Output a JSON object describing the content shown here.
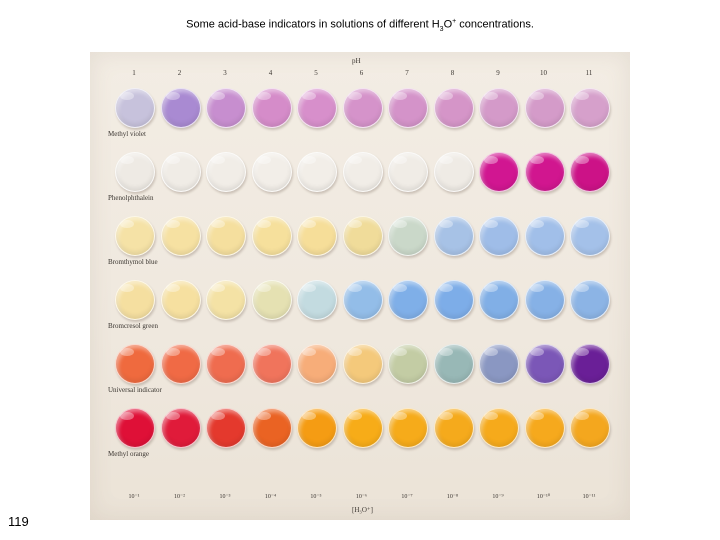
{
  "caption": {
    "part1": "Some acid-base indicators in solutions of different H",
    "sub": "3",
    "part2": "O",
    "sup": "+",
    "part3": " concentrations."
  },
  "slide_number": "119",
  "photo": {
    "ph_title": "pH",
    "ph_values": [
      "1",
      "2",
      "3",
      "4",
      "5",
      "6",
      "7",
      "8",
      "9",
      "10",
      "11"
    ],
    "h3o_labels": [
      "10⁻¹",
      "10⁻²",
      "10⁻³",
      "10⁻⁴",
      "10⁻⁵",
      "10⁻⁶",
      "10⁻⁷",
      "10⁻⁸",
      "10⁻⁹",
      "10⁻¹⁰",
      "10⁻¹¹"
    ],
    "h3o_title": "[H₃O⁺]",
    "indicators": [
      {
        "name": "Methyl violet",
        "colors": [
          "#c7c2dc",
          "#a98ad2",
          "#c78ecf",
          "#d58cc9",
          "#d78fcb",
          "#d593ca",
          "#d493c9",
          "#d595c8",
          "#d49ac9",
          "#d49bc9",
          "#d6a0cb"
        ]
      },
      {
        "name": "Phenolphthalein",
        "colors": [
          "#eeeae4",
          "#f0ece6",
          "#f1ede7",
          "#f2eee8",
          "#f2eee8",
          "#f1ede7",
          "#f0ece6",
          "#efebe5",
          "#d11691",
          "#d1168f",
          "#cc1287"
        ]
      },
      {
        "name": "Bromthymol blue",
        "colors": [
          "#f5e2a6",
          "#f6e1a2",
          "#f5df9e",
          "#f6e09c",
          "#f6de99",
          "#f0dc9a",
          "#cad8c9",
          "#a7c2e6",
          "#9fbde8",
          "#a1bfe9",
          "#a4c1e9"
        ]
      },
      {
        "name": "Bromcresol green",
        "colors": [
          "#f5dfa0",
          "#f6e0a0",
          "#f4e2a5",
          "#e5e1b2",
          "#c3dbe0",
          "#93bde8",
          "#7fafe8",
          "#7dade8",
          "#81afe6",
          "#86b1e6",
          "#8cb4e5"
        ]
      },
      {
        "name": "Universal indicator",
        "colors": [
          "#ef6a3e",
          "#f06a45",
          "#ef6c4f",
          "#f0745c",
          "#f7ad79",
          "#f4c97b",
          "#c3cca4",
          "#98b8b6",
          "#8a97c2",
          "#7b57b7",
          "#6a1f97"
        ]
      },
      {
        "name": "Methyl orange",
        "colors": [
          "#df1037",
          "#e01b3a",
          "#e4392d",
          "#ea6323",
          "#f59c13",
          "#f7ac18",
          "#f6ab1a",
          "#f5aa1c",
          "#f6aa1b",
          "#f6a91d",
          "#f4a71e"
        ]
      }
    ]
  }
}
